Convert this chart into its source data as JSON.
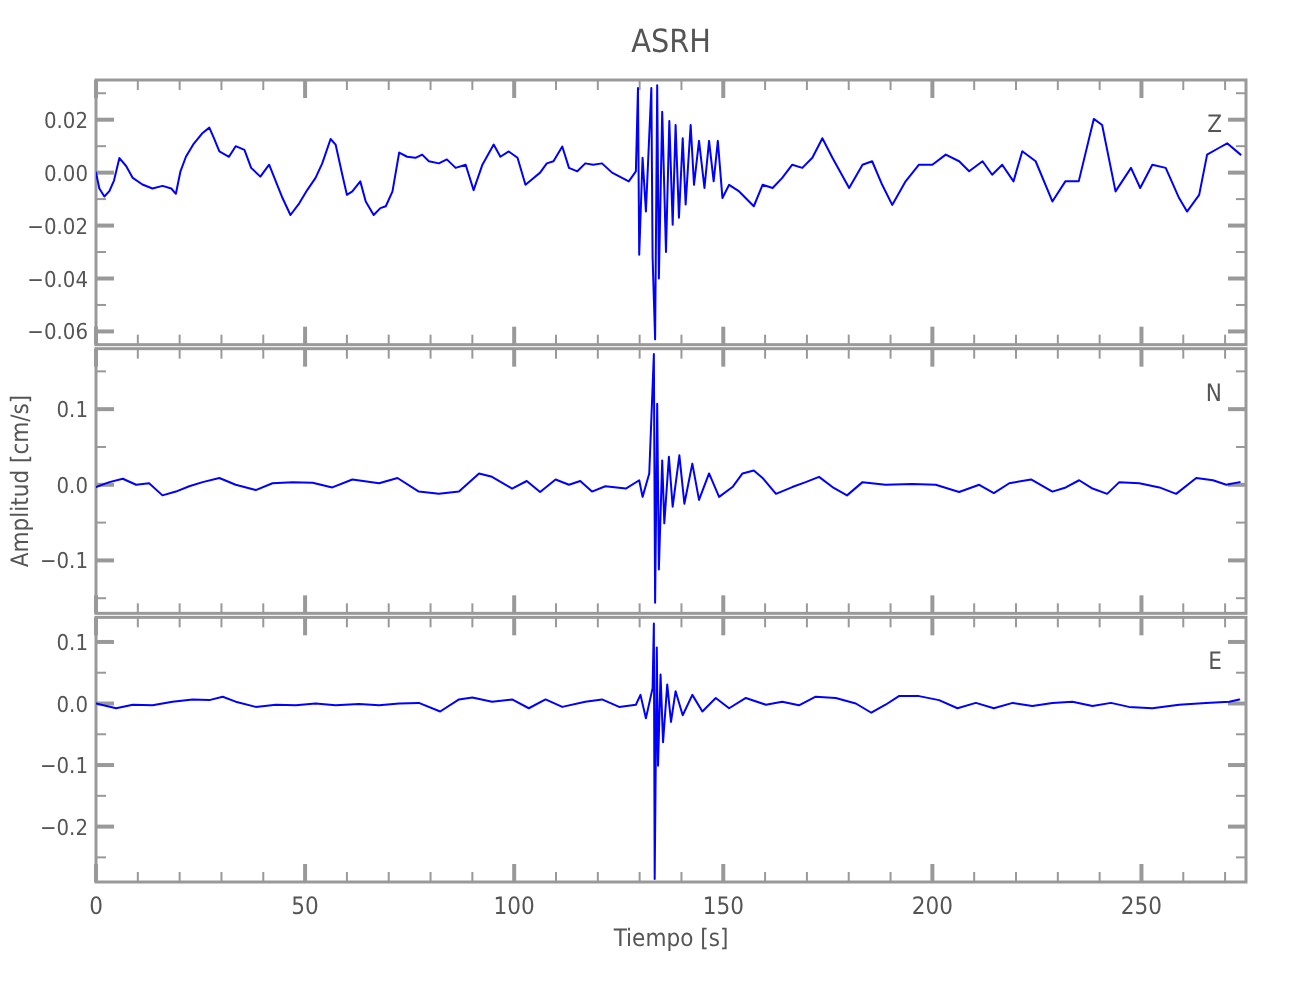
{
  "chart_data": [
    {
      "type": "line",
      "title": "ASRH",
      "tick_labels": "y",
      "xlim": [
        0,
        275
      ],
      "ylim": [
        -0.065,
        0.035
      ],
      "xticks": [
        0,
        {
          "value": 10,
          "label": null
        },
        {
          "value": 20,
          "label": null
        },
        {
          "value": 30,
          "label": null
        },
        {
          "value": 40,
          "label": null
        },
        50,
        {
          "value": 60,
          "label": null
        },
        {
          "value": 70,
          "label": null
        },
        {
          "value": 80,
          "label": null
        },
        {
          "value": 90,
          "label": null
        },
        100,
        {
          "value": 110,
          "label": null
        },
        {
          "value": 120,
          "label": null
        },
        {
          "value": 130,
          "label": null
        },
        {
          "value": 140,
          "label": null
        },
        150,
        {
          "value": 160,
          "label": null
        },
        {
          "value": 170,
          "label": null
        },
        {
          "value": 180,
          "label": null
        },
        {
          "value": 190,
          "label": null
        },
        200,
        {
          "value": 210,
          "label": null
        },
        {
          "value": 220,
          "label": null
        },
        {
          "value": 230,
          "label": null
        },
        {
          "value": 240,
          "label": null
        },
        250,
        {
          "value": 260,
          "label": null
        },
        {
          "value": 270,
          "label": null
        }
      ],
      "yticks": [
        {
          "value": 0.03,
          "label": null
        },
        {
          "value": 0.02,
          "label": "0.02"
        },
        {
          "value": 0.01,
          "label": null
        },
        {
          "value": 0,
          "label": "0.00"
        },
        {
          "value": -0.01,
          "label": null
        },
        {
          "value": -0.02,
          "label": "−0.02"
        },
        {
          "value": -0.03,
          "label": null
        },
        {
          "value": -0.04,
          "label": "−0.04"
        },
        {
          "value": -0.05,
          "label": null
        },
        {
          "value": -0.06,
          "label": "−0.06"
        }
      ],
      "series": [
        {
          "name": "Z",
          "color": "#0000ff",
          "x": [
            0,
            0.8,
            2,
            3.2,
            4.3,
            5.6,
            7.2,
            8.8,
            11.1,
            13.5,
            15.9,
            18,
            19.1,
            20.2,
            21.5,
            23.4,
            25.5,
            27.1,
            28.2,
            29.5,
            31.8,
            33.4,
            35.5,
            37.1,
            39.3,
            41.4,
            43,
            44.6,
            46.5,
            48.6,
            50.5,
            52.5,
            54.1,
            56.1,
            57.3,
            58.9,
            60,
            61.3,
            63.2,
            64.5,
            66.4,
            68,
            69.3,
            70.9,
            72.5,
            74.4,
            76.4,
            78,
            79.6,
            82,
            83.9,
            86,
            88.4,
            90.3,
            92.4,
            95.1,
            96.7,
            98.7,
            100.8,
            102.7,
            104.3,
            106.2,
            107.8,
            109.4,
            111.5,
            113.1,
            115.1,
            117,
            118.9,
            121,
            123.4,
            125.8,
            127.4,
            129.1,
            129.6,
            129.9,
            130.7,
            131.5,
            132.8,
            133.1,
            133.7,
            134.2,
            134.6,
            135.4,
            136.3,
            137.1,
            137.9,
            138.6,
            139.4,
            140.3,
            141,
            142.2,
            143,
            144.2,
            145.5,
            146.6,
            147.7,
            148.7,
            149.8,
            151.4,
            153.8,
            157.3,
            159.4,
            161.8,
            164.1,
            166.5,
            168.9,
            171.3,
            173.7,
            176.1,
            180.1,
            183.3,
            185.6,
            188,
            190.4,
            193.6,
            196.8,
            200,
            203.2,
            206.4,
            208.8,
            212,
            214.3,
            216.7,
            219.4,
            221.5,
            224.7,
            228.7,
            231.8,
            235,
            238.6,
            240.6,
            243.8,
            247.5,
            249.7,
            252.6,
            255.8,
            259,
            260.9,
            263.8,
            265.7,
            268.6,
            270.5,
            273.7
          ],
          "values": [
            0,
            -0.006,
            -0.009,
            -0.007,
            -0.003,
            0.0055,
            0.0025,
            -0.002,
            -0.0045,
            -0.006,
            -0.005,
            -0.006,
            -0.008,
            0.0005,
            0.006,
            0.011,
            0.015,
            0.017,
            0.013,
            0.008,
            0.006,
            0.01,
            0.0086,
            0.0018,
            -0.0015,
            0.003,
            -0.0033,
            -0.0096,
            -0.016,
            -0.0116,
            -0.0066,
            -0.002,
            0.0035,
            0.0127,
            0.0106,
            -0.0008,
            -0.0084,
            -0.0071,
            -0.0033,
            -0.0109,
            -0.016,
            -0.0134,
            -0.0127,
            -0.0071,
            0.0076,
            0.006,
            0.0056,
            0.0068,
            0.0043,
            0.0035,
            0.005,
            0.0018,
            0.003,
            -0.0066,
            0.003,
            0.0106,
            0.006,
            0.008,
            0.0056,
            -0.0046,
            -0.0025,
            0,
            0.0035,
            0.0043,
            0.0099,
            0.0018,
            0.0005,
            0.0035,
            0.003,
            0.0035,
            0,
            -0.002,
            -0.0033,
            0.0005,
            0.032,
            -0.031,
            0.0056,
            -0.0147,
            0.032,
            -0.032,
            -0.063,
            0.033,
            -0.04,
            0.023,
            -0.03,
            0.0195,
            -0.0197,
            0.018,
            -0.017,
            0.013,
            -0.012,
            0.018,
            -0.0046,
            0.012,
            -0.0058,
            0.012,
            -0.0033,
            0.012,
            -0.0096,
            -0.0046,
            -0.0071,
            -0.0127,
            -0.0046,
            -0.0058,
            -0.002,
            0.003,
            0.0018,
            0.0056,
            0.013,
            0.0056,
            -0.0058,
            0.003,
            0.0043,
            -0.0046,
            -0.0122,
            -0.0033,
            0.003,
            0.003,
            0.0068,
            0.0043,
            0.0005,
            0.0043,
            -0.0008,
            0.003,
            -0.0033,
            0.0081,
            0.0043,
            -0.0109,
            -0.0033,
            -0.0033,
            0.0203,
            0.018,
            -0.0071,
            0.0018,
            -0.0058,
            0.003,
            0.0018,
            -0.0096,
            -0.0147,
            -0.0084,
            0.0068,
            0.0094,
            0.0111,
            0.0068
          ]
        }
      ]
    },
    {
      "type": "line",
      "ylabel": "Amplitud  [cm/s]",
      "tick_labels": "y",
      "xlim": [
        0,
        275
      ],
      "ylim": [
        -0.17,
        0.18
      ],
      "xticks": [
        0,
        {
          "value": 10,
          "label": null
        },
        {
          "value": 20,
          "label": null
        },
        {
          "value": 30,
          "label": null
        },
        {
          "value": 40,
          "label": null
        },
        50,
        {
          "value": 60,
          "label": null
        },
        {
          "value": 70,
          "label": null
        },
        {
          "value": 80,
          "label": null
        },
        {
          "value": 90,
          "label": null
        },
        100,
        {
          "value": 110,
          "label": null
        },
        {
          "value": 120,
          "label": null
        },
        {
          "value": 130,
          "label": null
        },
        {
          "value": 140,
          "label": null
        },
        150,
        {
          "value": 160,
          "label": null
        },
        {
          "value": 170,
          "label": null
        },
        {
          "value": 180,
          "label": null
        },
        {
          "value": 190,
          "label": null
        },
        200,
        {
          "value": 210,
          "label": null
        },
        {
          "value": 220,
          "label": null
        },
        {
          "value": 230,
          "label": null
        },
        {
          "value": 240,
          "label": null
        },
        250,
        {
          "value": 260,
          "label": null
        },
        {
          "value": 270,
          "label": null
        }
      ],
      "yticks": [
        {
          "value": 0.15,
          "label": null
        },
        {
          "value": 0.1,
          "label": "0.1"
        },
        {
          "value": 0.05,
          "label": null
        },
        {
          "value": 0,
          "label": "0.0"
        },
        {
          "value": -0.05,
          "label": null
        },
        {
          "value": -0.1,
          "label": "−0.1"
        },
        {
          "value": -0.15,
          "label": null
        }
      ],
      "series": [
        {
          "name": "N",
          "color": "#0000ff",
          "x": [
            0,
            3.2,
            6.4,
            9.6,
            12.7,
            15.9,
            19.1,
            22.3,
            25.5,
            29.5,
            33.4,
            38.2,
            42.2,
            47,
            51.8,
            56.5,
            61.3,
            67.7,
            72.1,
            77.2,
            82,
            86.8,
            91.6,
            94.7,
            99.5,
            103,
            106.2,
            109.9,
            113.1,
            115.8,
            118.6,
            121.8,
            126.7,
            129.9,
            130.7,
            132.3,
            133.4,
            133.7,
            134.2,
            134.6,
            135.4,
            135.9,
            137,
            137.9,
            139.5,
            140.7,
            142.6,
            144.2,
            146.6,
            149,
            152.2,
            154.6,
            157.3,
            159.4,
            162.6,
            166.5,
            169.7,
            172.9,
            176.1,
            179.6,
            183.3,
            188.8,
            195.2,
            200.8,
            206.4,
            211.2,
            214.7,
            218.4,
            223.6,
            228.7,
            231.9,
            235.1,
            238.3,
            241.8,
            244.7,
            249.5,
            254.3,
            258.3,
            263.1,
            267.1,
            270.3,
            273.5
          ],
          "values": [
            -0.003,
            0.0035,
            0.008,
            0,
            0.002,
            -0.014,
            -0.009,
            -0.002,
            0.0035,
            0.009,
            0,
            -0.007,
            0.002,
            0.0035,
            0.0026,
            -0.0035,
            0.007,
            0.002,
            0.009,
            -0.009,
            -0.012,
            -0.009,
            0.015,
            0.0105,
            -0.005,
            0.005,
            -0.0096,
            0.007,
            0,
            0.005,
            -0.009,
            -0.002,
            -0.005,
            0.006,
            -0.016,
            0.015,
            0.173,
            -0.156,
            0.107,
            -0.112,
            0.032,
            -0.051,
            0.037,
            -0.029,
            0.039,
            -0.025,
            0.028,
            -0.02,
            0.015,
            -0.016,
            -0.003,
            0.015,
            0.019,
            0.009,
            -0.012,
            -0.003,
            0.0035,
            0.0105,
            -0.003,
            -0.014,
            0.0035,
            0,
            0.001,
            0,
            -0.0096,
            0,
            -0.011,
            0.002,
            0.007,
            -0.009,
            -0.0035,
            0.006,
            -0.005,
            -0.012,
            0.0035,
            0.002,
            -0.0035,
            -0.012,
            0.009,
            0.006,
            0,
            0.0035
          ]
        }
      ]
    },
    {
      "type": "line",
      "xlabel": "Tiempo  [s]",
      "xlim": [
        0,
        275
      ],
      "ylim": [
        -0.29,
        0.14
      ],
      "xticks": [
        0,
        {
          "value": 10,
          "label": null
        },
        {
          "value": 20,
          "label": null
        },
        {
          "value": 30,
          "label": null
        },
        {
          "value": 40,
          "label": null
        },
        50,
        {
          "value": 60,
          "label": null
        },
        {
          "value": 70,
          "label": null
        },
        {
          "value": 80,
          "label": null
        },
        {
          "value": 90,
          "label": null
        },
        100,
        {
          "value": 110,
          "label": null
        },
        {
          "value": 120,
          "label": null
        },
        {
          "value": 130,
          "label": null
        },
        {
          "value": 140,
          "label": null
        },
        150,
        {
          "value": 160,
          "label": null
        },
        {
          "value": 170,
          "label": null
        },
        {
          "value": 180,
          "label": null
        },
        {
          "value": 190,
          "label": null
        },
        200,
        {
          "value": 210,
          "label": null
        },
        {
          "value": 220,
          "label": null
        },
        {
          "value": 230,
          "label": null
        },
        {
          "value": 240,
          "label": null
        },
        250,
        {
          "value": 260,
          "label": null
        },
        {
          "value": 270,
          "label": null
        }
      ],
      "yticks": [
        {
          "value": 0.1,
          "label": "0.1"
        },
        {
          "value": 0.05,
          "label": null
        },
        {
          "value": 0,
          "label": "0.0"
        },
        {
          "value": -0.05,
          "label": null
        },
        {
          "value": -0.1,
          "label": "−0.1"
        },
        {
          "value": -0.15,
          "label": null
        },
        {
          "value": -0.2,
          "label": "−0.2"
        },
        {
          "value": -0.25,
          "label": null
        }
      ],
      "series": [
        {
          "name": "E",
          "color": "#0000ff",
          "x": [
            0,
            4.8,
            8.8,
            13.5,
            18.3,
            23.1,
            27.1,
            30.3,
            33.4,
            38.2,
            43,
            47.8,
            52.5,
            57.3,
            62.9,
            67.7,
            72.5,
            77.2,
            82.3,
            86.8,
            90,
            94.7,
            99.5,
            103.5,
            107.5,
            111.5,
            117,
            121,
            125.1,
            129.1,
            130.2,
            131.5,
            133.1,
            133.4,
            133.6,
            134.1,
            134.4,
            135,
            135.6,
            136.6,
            137.5,
            138.6,
            140.3,
            142.6,
            145,
            148.2,
            151.4,
            155.4,
            160.2,
            164.1,
            168.1,
            172.1,
            176.9,
            181.7,
            185.4,
            188.8,
            192,
            196.8,
            201.6,
            206,
            210.4,
            214.7,
            219.2,
            223.9,
            228.7,
            233.5,
            238.3,
            242.7,
            247,
            252.6,
            259,
            265.4,
            271,
            273.4
          ],
          "values": [
            0,
            -0.0077,
            -0.002,
            -0.003,
            0.003,
            0.0066,
            0.0055,
            0.011,
            0.003,
            -0.0055,
            -0.002,
            -0.003,
            0,
            -0.003,
            -0.001,
            -0.003,
            0,
            0.001,
            -0.013,
            0.0066,
            0.0099,
            0.003,
            0.0066,
            -0.0077,
            0.0066,
            -0.0055,
            0.003,
            0.0066,
            -0.0055,
            -0.002,
            0.014,
            -0.024,
            0.025,
            0.13,
            -0.285,
            0.091,
            -0.101,
            0.047,
            -0.063,
            0.031,
            -0.03,
            0.02,
            -0.019,
            0.014,
            -0.013,
            0.009,
            -0.0077,
            0.009,
            -0.002,
            0.003,
            -0.003,
            0.011,
            0.009,
            0,
            -0.015,
            -0.002,
            0.012,
            0.012,
            0.0055,
            -0.0077,
            0.001,
            -0.0077,
            0.001,
            -0.004,
            0.001,
            0.003,
            -0.004,
            0.001,
            -0.0055,
            -0.0077,
            -0.002,
            0.001,
            0.003,
            0.0066
          ]
        }
      ]
    }
  ]
}
